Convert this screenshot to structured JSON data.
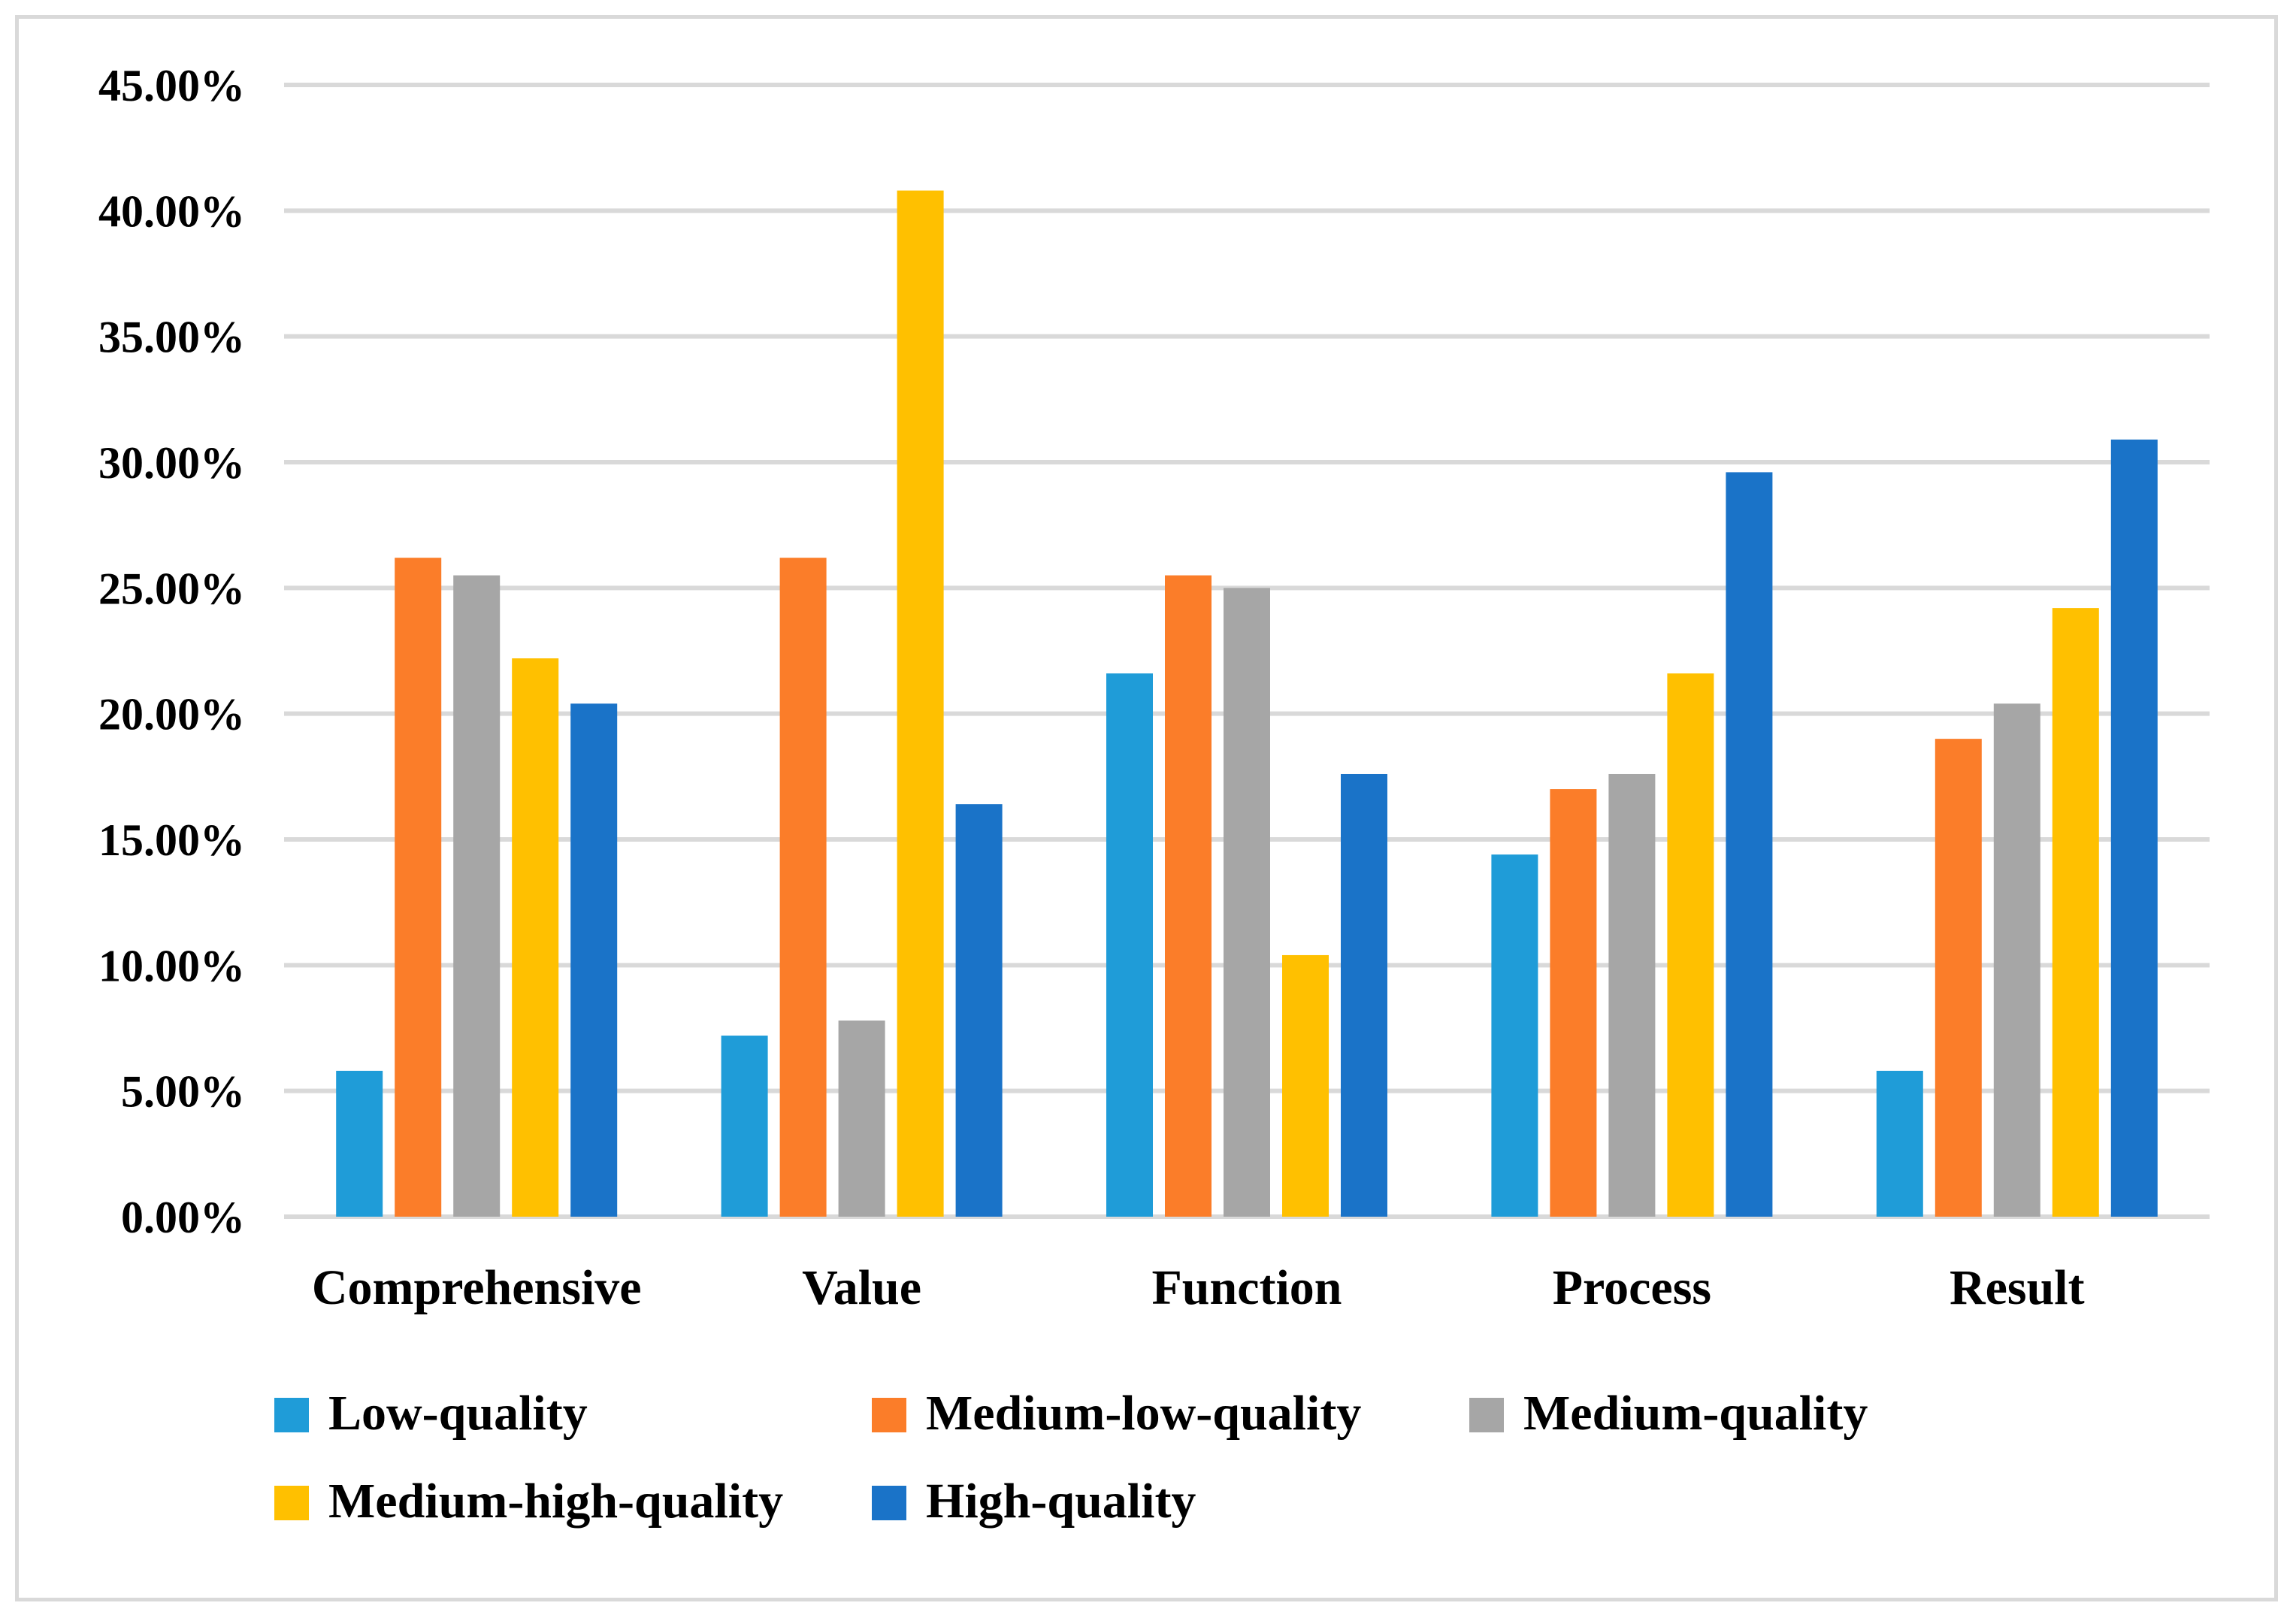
{
  "chart_data": {
    "type": "bar",
    "title": "",
    "xlabel": "",
    "ylabel": "",
    "ylim": [
      0,
      45
    ],
    "y_tick_step": 5,
    "y_tick_labels": [
      "0.00%",
      "5.00%",
      "10.00%",
      "15.00%",
      "20.00%",
      "25.00%",
      "30.00%",
      "35.00%",
      "40.00%",
      "45.00%"
    ],
    "grid": true,
    "legend_position": "bottom",
    "categories": [
      "Comprehensive",
      "Value",
      "Function",
      "Process",
      "Result"
    ],
    "series": [
      {
        "name": "Low-quality",
        "color": "#1f9cd8",
        "values": [
          5.8,
          7.2,
          21.6,
          14.4,
          5.8
        ]
      },
      {
        "name": "Medium-low-quality",
        "color": "#fb7d29",
        "values": [
          26.2,
          26.2,
          25.5,
          17.0,
          19.0
        ]
      },
      {
        "name": "Medium-quality",
        "color": "#a6a6a6",
        "values": [
          25.5,
          7.8,
          25.0,
          17.6,
          20.4
        ]
      },
      {
        "name": "Medium-high-quality",
        "color": "#ffc000",
        "values": [
          22.2,
          40.8,
          10.4,
          21.6,
          24.2
        ]
      },
      {
        "name": "High-quality",
        "color": "#1a73c8",
        "values": [
          20.4,
          16.4,
          17.6,
          29.6,
          30.9
        ]
      }
    ]
  }
}
